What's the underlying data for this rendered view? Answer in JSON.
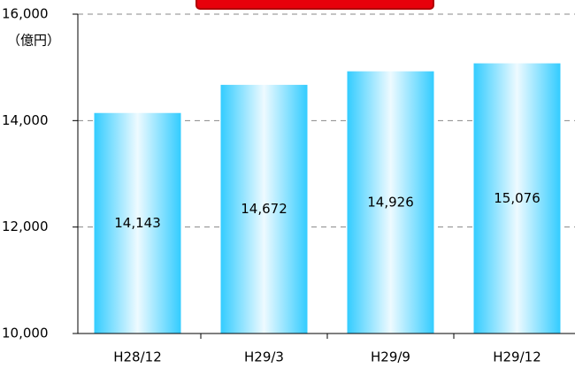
{
  "chart_data": {
    "type": "bar",
    "y_axis_label": "（億円）",
    "categories": [
      "H28/12",
      "H29/3",
      "H29/9",
      "H29/12"
    ],
    "values": [
      14143,
      14672,
      14926,
      15076
    ],
    "value_labels": [
      "14,143",
      "14,672",
      "14,926",
      "15,076"
    ],
    "color": "#33ccff",
    "ylim": [
      10000,
      16000
    ],
    "yticks": [
      {
        "value": 10000,
        "label": "10,000"
      },
      {
        "value": 12000,
        "label": "12,000"
      },
      {
        "value": 14000,
        "label": "14,000"
      },
      {
        "value": 16000,
        "label": "16,000"
      }
    ],
    "grid": true
  }
}
